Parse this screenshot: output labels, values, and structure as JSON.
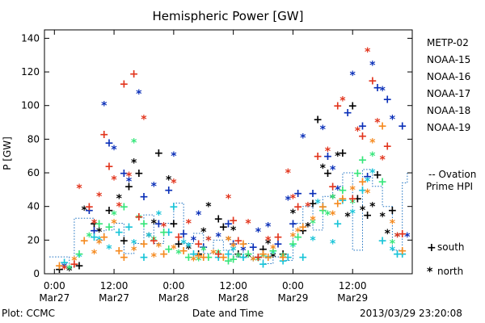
{
  "chart_data": {
    "type": "scatter",
    "title": "Hemispheric Power [GW]",
    "xlabel": "Date and Time",
    "ylabel": "P [GW]",
    "ylim": [
      0,
      145
    ],
    "xlim_hours": [
      -2,
      72
    ],
    "y_ticks": [
      "0",
      "20",
      "40",
      "60",
      "80",
      "100",
      "120",
      "140"
    ],
    "x_ticks": [
      {
        "time": "0:00",
        "date": "Mar27"
      },
      {
        "time": "12:00",
        "date": "Mar27"
      },
      {
        "time": "0:00",
        "date": "Mar28"
      },
      {
        "time": "12:00",
        "date": "Mar28"
      },
      {
        "time": "0:00",
        "date": "Mar29"
      },
      {
        "time": "12:00",
        "date": "Mar29"
      }
    ],
    "footer_left": "Plot: CCMC",
    "footer_right": "2013/03/29 23:20:08",
    "legend_placement": "right",
    "marker_legend": [
      {
        "symbol": "+",
        "label": "south"
      },
      {
        "symbol": "*",
        "label": "north"
      }
    ],
    "ovation_label_line1": "-- Ovation",
    "ovation_label_line2": "Prime HPI",
    "ovation_color": "#1a6fc0",
    "series": [
      {
        "name": "METP-02",
        "color": "#000000",
        "points": [
          [
            1,
            3
          ],
          [
            3,
            2
          ],
          [
            5,
            5
          ],
          [
            6,
            38
          ],
          [
            8,
            30
          ],
          [
            9,
            25
          ],
          [
            11,
            38
          ],
          [
            13,
            45
          ],
          [
            15,
            52
          ],
          [
            16,
            66
          ],
          [
            17,
            60
          ],
          [
            19,
            22
          ],
          [
            21,
            72
          ],
          [
            23,
            56
          ],
          [
            25,
            18
          ],
          [
            27,
            15
          ],
          [
            29,
            12
          ],
          [
            31,
            40
          ],
          [
            33,
            33
          ],
          [
            35,
            20
          ],
          [
            37,
            12
          ],
          [
            39,
            10
          ],
          [
            41,
            10
          ],
          [
            43,
            18
          ],
          [
            46,
            12
          ],
          [
            48,
            36
          ],
          [
            50,
            26
          ],
          [
            51,
            28
          ],
          [
            53,
            92
          ],
          [
            54,
            63
          ],
          [
            55,
            60
          ],
          [
            57,
            70
          ],
          [
            58,
            72
          ],
          [
            59,
            34
          ],
          [
            60,
            100
          ],
          [
            62,
            38
          ],
          [
            63,
            35
          ],
          [
            64,
            40
          ],
          [
            65,
            59
          ],
          [
            66,
            34
          ],
          [
            68,
            38
          ],
          [
            69,
            22
          ],
          [
            14,
            20
          ],
          [
            20,
            30
          ],
          [
            24,
            30
          ],
          [
            30,
            25
          ],
          [
            34,
            28
          ],
          [
            36,
            26
          ],
          [
            42,
            15
          ],
          [
            44,
            10
          ],
          [
            52,
            42
          ],
          [
            56,
            45
          ],
          [
            61,
            45
          ],
          [
            67,
            24
          ]
        ]
      },
      {
        "name": "NOAA-15",
        "color": "#0a2fb8",
        "points": [
          [
            2,
            4
          ],
          [
            7,
            38
          ],
          [
            10,
            100
          ],
          [
            11,
            78
          ],
          [
            12,
            74
          ],
          [
            14,
            60
          ],
          [
            17,
            107
          ],
          [
            18,
            46
          ],
          [
            20,
            52
          ],
          [
            23,
            50
          ],
          [
            24,
            70
          ],
          [
            26,
            24
          ],
          [
            28,
            20
          ],
          [
            30,
            16
          ],
          [
            33,
            22
          ],
          [
            36,
            18
          ],
          [
            38,
            14
          ],
          [
            40,
            16
          ],
          [
            43,
            28
          ],
          [
            45,
            18
          ],
          [
            47,
            44
          ],
          [
            49,
            48
          ],
          [
            50,
            81
          ],
          [
            52,
            48
          ],
          [
            54,
            86
          ],
          [
            55,
            70
          ],
          [
            57,
            50
          ],
          [
            59,
            96
          ],
          [
            60,
            118
          ],
          [
            62,
            88
          ],
          [
            64,
            124
          ],
          [
            65,
            111
          ],
          [
            66,
            109
          ],
          [
            67,
            104
          ],
          [
            68,
            92
          ],
          [
            70,
            88
          ],
          [
            71,
            22
          ],
          [
            8,
            26
          ],
          [
            15,
            55
          ],
          [
            21,
            30
          ],
          [
            29,
            35
          ],
          [
            35,
            30
          ],
          [
            41,
            25
          ],
          [
            48,
            30
          ],
          [
            56,
            62
          ],
          [
            63,
            58
          ]
        ]
      },
      {
        "name": "NOAA-16",
        "color": "#18c4d8",
        "points": [
          [
            2,
            7
          ],
          [
            5,
            10
          ],
          [
            8,
            22
          ],
          [
            11,
            15
          ],
          [
            13,
            25
          ],
          [
            16,
            18
          ],
          [
            18,
            10
          ],
          [
            21,
            35
          ],
          [
            24,
            40
          ],
          [
            26,
            18
          ],
          [
            28,
            12
          ],
          [
            31,
            20
          ],
          [
            33,
            10
          ],
          [
            36,
            14
          ],
          [
            38,
            10
          ],
          [
            40,
            8
          ],
          [
            42,
            6
          ],
          [
            44,
            12
          ],
          [
            46,
            8
          ],
          [
            48,
            16
          ],
          [
            50,
            10
          ],
          [
            52,
            20
          ],
          [
            54,
            40
          ],
          [
            56,
            18
          ],
          [
            58,
            44
          ],
          [
            60,
            36
          ],
          [
            62,
            50
          ],
          [
            64,
            60
          ],
          [
            66,
            20
          ],
          [
            68,
            14
          ],
          [
            70,
            12
          ],
          [
            9,
            20
          ],
          [
            15,
            28
          ],
          [
            19,
            22
          ],
          [
            23,
            25
          ],
          [
            27,
            16
          ],
          [
            35,
            12
          ],
          [
            43,
            9
          ],
          [
            47,
            10
          ],
          [
            53,
            42
          ],
          [
            57,
            30
          ],
          [
            63,
            55
          ],
          [
            69,
            12
          ]
        ]
      },
      {
        "name": "NOAA-17",
        "color": "#36e67a",
        "points": [
          [
            3,
            3
          ],
          [
            5,
            12
          ],
          [
            7,
            22
          ],
          [
            9,
            30
          ],
          [
            12,
            35
          ],
          [
            14,
            40
          ],
          [
            16,
            78
          ],
          [
            18,
            30
          ],
          [
            20,
            20
          ],
          [
            22,
            25
          ],
          [
            25,
            12
          ],
          [
            27,
            10
          ],
          [
            29,
            8
          ],
          [
            31,
            10
          ],
          [
            33,
            12
          ],
          [
            35,
            8
          ],
          [
            37,
            10
          ],
          [
            39,
            12
          ],
          [
            41,
            8
          ],
          [
            44,
            14
          ],
          [
            46,
            10
          ],
          [
            49,
            22
          ],
          [
            52,
            30
          ],
          [
            54,
            38
          ],
          [
            56,
            45
          ],
          [
            58,
            50
          ],
          [
            60,
            42
          ],
          [
            62,
            68
          ],
          [
            64,
            70
          ],
          [
            66,
            55
          ],
          [
            68,
            18
          ],
          [
            11,
            28
          ],
          [
            17,
            33
          ],
          [
            23,
            15
          ],
          [
            30,
            14
          ],
          [
            36,
            9
          ],
          [
            42,
            10
          ],
          [
            48,
            18
          ],
          [
            55,
            35
          ],
          [
            61,
            60
          ]
        ]
      },
      {
        "name": "NOAA-18",
        "color": "#f58a1f",
        "points": [
          [
            1,
            5
          ],
          [
            4,
            8
          ],
          [
            6,
            20
          ],
          [
            8,
            12
          ],
          [
            10,
            22
          ],
          [
            12,
            30
          ],
          [
            14,
            10
          ],
          [
            16,
            14
          ],
          [
            18,
            18
          ],
          [
            20,
            10
          ],
          [
            22,
            12
          ],
          [
            24,
            15
          ],
          [
            26,
            14
          ],
          [
            28,
            8
          ],
          [
            30,
            10
          ],
          [
            32,
            12
          ],
          [
            34,
            10
          ],
          [
            36,
            16
          ],
          [
            38,
            18
          ],
          [
            40,
            8
          ],
          [
            42,
            12
          ],
          [
            44,
            15
          ],
          [
            46,
            10
          ],
          [
            48,
            22
          ],
          [
            50,
            28
          ],
          [
            52,
            32
          ],
          [
            54,
            40
          ],
          [
            56,
            35
          ],
          [
            58,
            45
          ],
          [
            60,
            50
          ],
          [
            62,
            55
          ],
          [
            64,
            78
          ],
          [
            66,
            88
          ],
          [
            68,
            30
          ],
          [
            70,
            14
          ],
          [
            9,
            18
          ],
          [
            13,
            14
          ],
          [
            21,
            16
          ],
          [
            29,
            11
          ],
          [
            35,
            20
          ],
          [
            43,
            10
          ],
          [
            49,
            25
          ],
          [
            57,
            42
          ],
          [
            63,
            48
          ]
        ]
      },
      {
        "name": "NOAA-19",
        "color": "#e2341c",
        "points": [
          [
            2,
            3
          ],
          [
            4,
            6
          ],
          [
            5,
            51
          ],
          [
            7,
            40
          ],
          [
            9,
            46
          ],
          [
            11,
            64
          ],
          [
            13,
            40
          ],
          [
            14,
            113
          ],
          [
            15,
            58
          ],
          [
            16,
            119
          ],
          [
            18,
            92
          ],
          [
            20,
            20
          ],
          [
            22,
            28
          ],
          [
            25,
            22
          ],
          [
            27,
            30
          ],
          [
            29,
            18
          ],
          [
            31,
            20
          ],
          [
            33,
            12
          ],
          [
            35,
            45
          ],
          [
            37,
            20
          ],
          [
            39,
            30
          ],
          [
            41,
            10
          ],
          [
            43,
            20
          ],
          [
            45,
            22
          ],
          [
            47,
            60
          ],
          [
            49,
            40
          ],
          [
            51,
            40
          ],
          [
            53,
            70
          ],
          [
            55,
            73
          ],
          [
            57,
            100
          ],
          [
            58,
            103
          ],
          [
            60,
            45
          ],
          [
            61,
            85
          ],
          [
            62,
            82
          ],
          [
            63,
            132
          ],
          [
            64,
            115
          ],
          [
            66,
            68
          ],
          [
            67,
            76
          ],
          [
            69,
            22
          ],
          [
            70,
            24
          ],
          [
            8,
            30
          ],
          [
            10,
            83
          ],
          [
            12,
            56
          ],
          [
            17,
            34
          ],
          [
            24,
            54
          ],
          [
            36,
            32
          ],
          [
            48,
            45
          ],
          [
            56,
            52
          ],
          [
            65,
            90
          ]
        ]
      }
    ],
    "ovation_hpi": [
      [
        -1,
        10
      ],
      [
        1,
        10
      ],
      [
        3,
        4
      ],
      [
        4,
        33
      ],
      [
        6,
        33
      ],
      [
        8,
        20
      ],
      [
        10,
        26
      ],
      [
        12,
        30
      ],
      [
        14,
        12
      ],
      [
        16,
        18
      ],
      [
        18,
        35
      ],
      [
        20,
        18
      ],
      [
        22,
        30
      ],
      [
        24,
        42
      ],
      [
        26,
        18
      ],
      [
        28,
        24
      ],
      [
        30,
        12
      ],
      [
        32,
        20
      ],
      [
        34,
        14
      ],
      [
        36,
        10
      ],
      [
        38,
        18
      ],
      [
        40,
        10
      ],
      [
        42,
        6
      ],
      [
        44,
        10
      ],
      [
        46,
        8
      ],
      [
        48,
        30
      ],
      [
        50,
        40
      ],
      [
        52,
        26
      ],
      [
        54,
        46
      ],
      [
        56,
        52
      ],
      [
        58,
        60
      ],
      [
        60,
        14
      ],
      [
        62,
        62
      ],
      [
        64,
        52
      ],
      [
        66,
        40
      ],
      [
        68,
        14
      ],
      [
        70,
        54
      ],
      [
        71,
        60
      ],
      [
        72,
        60
      ]
    ]
  }
}
